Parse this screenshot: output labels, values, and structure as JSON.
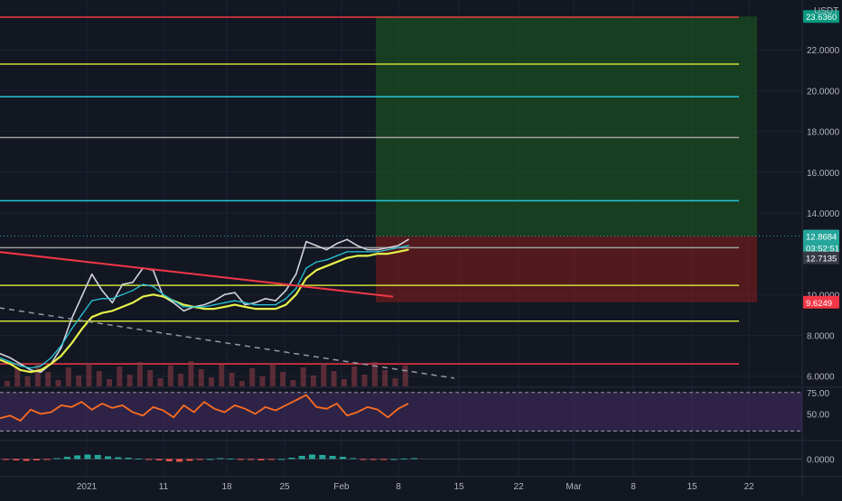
{
  "colors": {
    "background": "#131722",
    "grid": "#1e2230",
    "pane_border": "#2a2e39",
    "axis_text": "#b2b5be",
    "price_line_white": "#d1d4dc",
    "ema_yellow": "#e7f24a",
    "ema_orange": "#ff7c2a",
    "bb_green": "#a6c46a",
    "cyan": "#26c6da",
    "blue": "#2196f3",
    "red": "#f23645",
    "green_zone": "#1b5e20",
    "red_zone": "#7f1d1d",
    "rsi": "#ff6d1f",
    "rsi_band": "#4a2f6b",
    "macd_up": "#26a69a",
    "macd_down": "#ef5350",
    "volume": "#8a3b46"
  },
  "header": {
    "currency": "USDT"
  },
  "chart_data": [
    {
      "type": "line",
      "pane": "price",
      "y_ticks": [
        "22.0000",
        "20.0000",
        "18.0000",
        "16.0000",
        "14.0000",
        "10.0000",
        "8.0000",
        "6.0000"
      ],
      "ylim": [
        5.5,
        24
      ],
      "x_ticks": [
        "2021",
        "11",
        "18",
        "25",
        "Feb",
        "8",
        "15",
        "22",
        "Mar",
        "8",
        "15",
        "22"
      ],
      "price_badges": [
        {
          "label": "23.6360",
          "value": 23.636,
          "color": "#089981"
        },
        {
          "label": "12.8684",
          "value": 12.8684,
          "color": "#26a69a"
        },
        {
          "label": "03:52:51",
          "value": 12.3,
          "color": "#26a69a"
        },
        {
          "label": "12.7135",
          "value": 11.8,
          "color": "#363a45"
        },
        {
          "label": "9.6249",
          "value": 9.6249,
          "color": "#f23645"
        }
      ],
      "horizontal_levels": [
        {
          "value": 23.6,
          "color": "#f23645"
        },
        {
          "value": 21.3,
          "color": "#cddc39"
        },
        {
          "value": 19.7,
          "color": "#26c6da"
        },
        {
          "value": 17.7,
          "color": "#9e9e9e"
        },
        {
          "value": 14.6,
          "color": "#26c6da"
        },
        {
          "value": 12.3,
          "color": "#9e9e9e"
        },
        {
          "value": 10.45,
          "color": "#cddc39"
        },
        {
          "value": 8.7,
          "color": "#cddc39"
        },
        {
          "value": 6.6,
          "color": "#f23645"
        }
      ],
      "long_position": {
        "entry": 12.8684,
        "target": 23.636,
        "stop": 9.6249
      },
      "trendline_down": [
        [
          -2,
          12.2
        ],
        [
          38.5,
          9.9
        ]
      ],
      "trendline_dashed": [
        [
          -2,
          9.5
        ],
        [
          44.5,
          5.9
        ]
      ],
      "series": [
        {
          "values": [
            7.1,
            6.9,
            6.6,
            6.3,
            6.2,
            6.6,
            7.4,
            8.8,
            9.9,
            11.0,
            10.2,
            9.6,
            10.5,
            10.6,
            11.3,
            11.2,
            9.9,
            9.6,
            9.2,
            9.4,
            9.5,
            9.7,
            10.0,
            10.1,
            9.5,
            9.6,
            9.8,
            9.7,
            10.2,
            11.0,
            12.6,
            12.4,
            12.2,
            12.5,
            12.7,
            12.4,
            12.2,
            12.2,
            12.3,
            12.4,
            12.7
          ]
        },
        {
          "values": [
            6.8,
            6.6,
            6.3,
            6.2,
            6.3,
            6.6,
            7.0,
            7.6,
            8.3,
            8.9,
            9.1,
            9.2,
            9.4,
            9.6,
            9.9,
            10.0,
            9.9,
            9.7,
            9.5,
            9.4,
            9.3,
            9.3,
            9.4,
            9.5,
            9.4,
            9.3,
            9.3,
            9.3,
            9.5,
            10.0,
            10.8,
            11.2,
            11.4,
            11.6,
            11.8,
            11.9,
            11.9,
            12.0,
            12.0,
            12.1,
            12.2
          ]
        },
        {
          "values": [
            6.9,
            6.7,
            6.5,
            6.4,
            6.5,
            6.9,
            7.5,
            8.3,
            9.0,
            9.7,
            9.8,
            9.8,
            10.0,
            10.2,
            10.5,
            10.4,
            10.0,
            9.7,
            9.4,
            9.4,
            9.4,
            9.5,
            9.6,
            9.7,
            9.6,
            9.5,
            9.5,
            9.5,
            9.8,
            10.3,
            11.3,
            11.6,
            11.7,
            11.9,
            12.1,
            12.1,
            12.1,
            12.1,
            12.2,
            12.3,
            12.4
          ]
        }
      ]
    },
    {
      "type": "line",
      "pane": "rsi",
      "y_ticks": [
        "75.00",
        "50.00"
      ],
      "ylim": [
        20,
        80
      ],
      "series": [
        {
          "values": [
            45,
            48,
            42,
            55,
            50,
            52,
            60,
            58,
            64,
            55,
            62,
            57,
            60,
            52,
            48,
            58,
            54,
            46,
            60,
            52,
            64,
            56,
            52,
            60,
            56,
            50,
            58,
            54,
            60,
            66,
            72,
            58,
            56,
            62,
            48,
            52,
            58,
            55,
            46,
            56,
            62
          ]
        }
      ]
    },
    {
      "type": "bar",
      "pane": "macd",
      "y_ticks": [
        "0.0000"
      ],
      "ylim": [
        -1,
        1
      ],
      "series": [
        {
          "values": [
            -0.1,
            -0.15,
            -0.2,
            -0.15,
            -0.05,
            0.1,
            0.25,
            0.4,
            0.5,
            0.45,
            0.3,
            0.2,
            0.15,
            0.05,
            -0.05,
            -0.15,
            -0.25,
            -0.3,
            -0.2,
            -0.1,
            0.0,
            0.1,
            0.05,
            -0.05,
            -0.1,
            -0.15,
            -0.1,
            0.0,
            0.15,
            0.35,
            0.5,
            0.45,
            0.35,
            0.25,
            0.1,
            -0.05,
            -0.1,
            -0.05,
            0.0,
            0.05,
            0.1
          ]
        }
      ]
    }
  ]
}
